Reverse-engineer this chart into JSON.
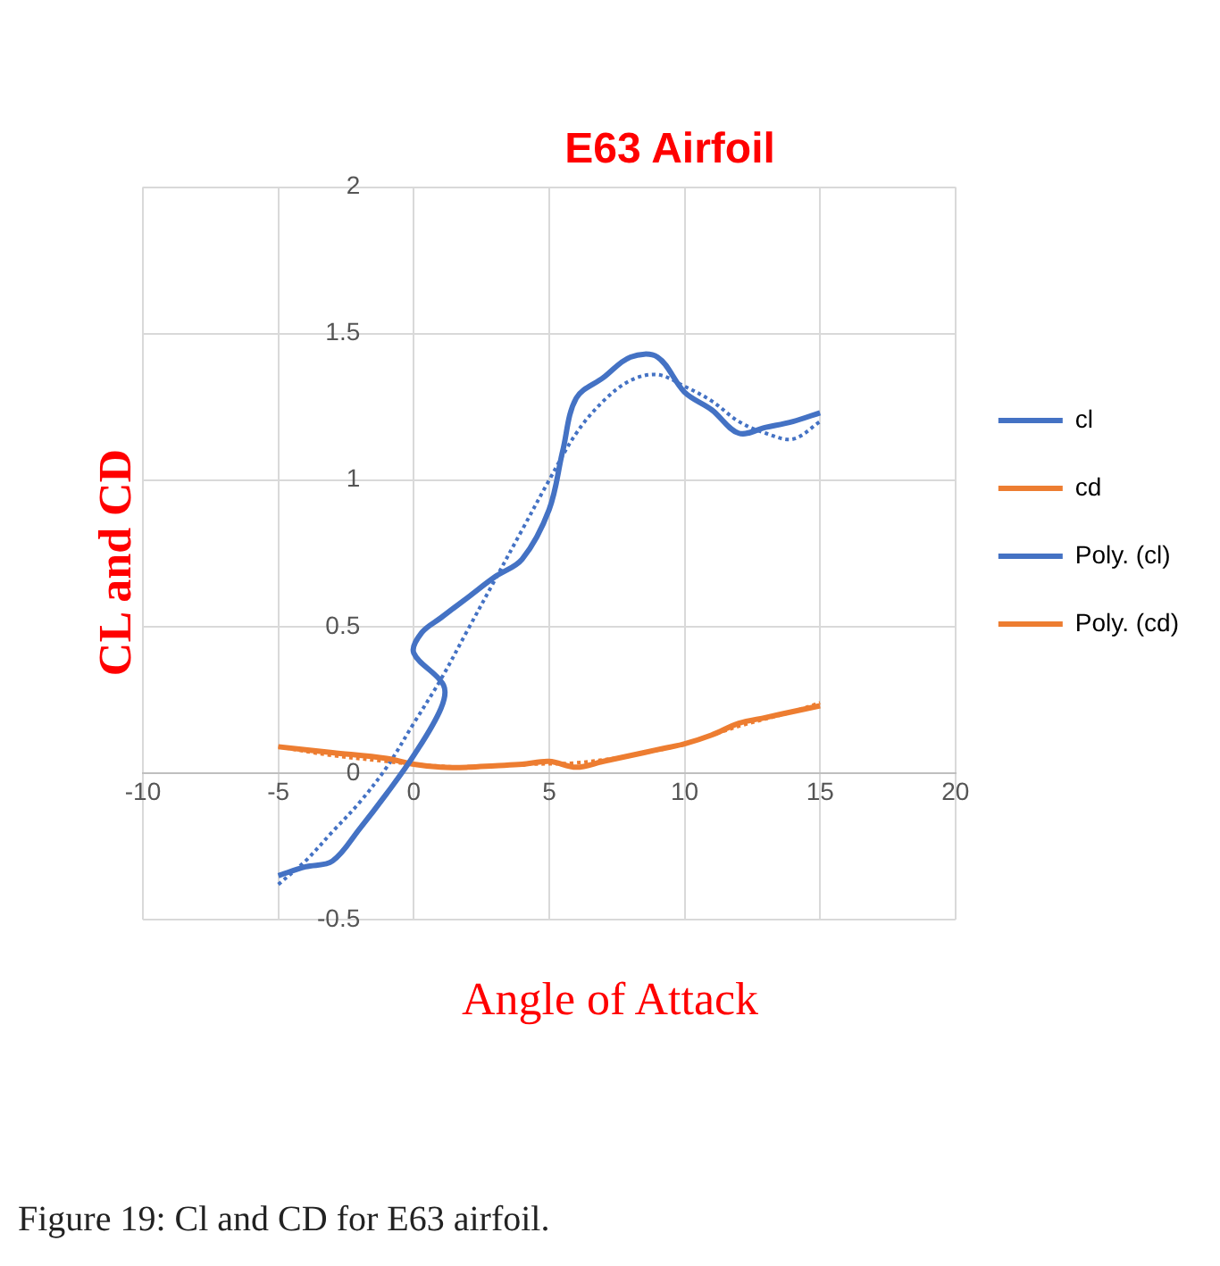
{
  "chart_data": {
    "type": "line",
    "title": "E63 Airfoil",
    "xlabel": "Angle of Attack",
    "ylabel": "CL and CD",
    "xlim": [
      -10,
      20
    ],
    "xticks": [
      -10,
      -5,
      0,
      5,
      10,
      15,
      20
    ],
    "ylim": [
      -0.5,
      2
    ],
    "yticks": [
      -0.5,
      0,
      0.5,
      1,
      1.5,
      2
    ],
    "grid": true,
    "legend": "right",
    "marker": "none",
    "series": [
      {
        "name": "cl",
        "color": "#4472c4",
        "line_style": "solid",
        "x": [
          -5,
          -4,
          -3,
          -2,
          -1,
          0,
          1,
          1.1,
          0,
          0.3,
          1,
          2,
          3,
          4,
          5,
          5.5,
          6,
          7,
          8,
          9,
          10,
          11,
          12,
          13,
          14,
          15
        ],
        "values": [
          -0.35,
          -0.32,
          -0.3,
          -0.19,
          -0.07,
          0.06,
          0.22,
          0.3,
          0.41,
          0.48,
          0.53,
          0.6,
          0.67,
          0.73,
          0.9,
          1.1,
          1.28,
          1.35,
          1.42,
          1.42,
          1.3,
          1.24,
          1.16,
          1.18,
          1.2,
          1.23
        ]
      },
      {
        "name": "cd",
        "color": "#ed7d31",
        "line_style": "solid",
        "x": [
          -5,
          -3,
          -1,
          0,
          1,
          2,
          3,
          4,
          5,
          6,
          7,
          8,
          9,
          10,
          11,
          12,
          13,
          14,
          15
        ],
        "values": [
          0.09,
          0.07,
          0.05,
          0.03,
          0.02,
          0.02,
          0.025,
          0.03,
          0.04,
          0.02,
          0.04,
          0.06,
          0.08,
          0.1,
          0.13,
          0.17,
          0.19,
          0.21,
          0.23
        ]
      },
      {
        "name": "Poly. (cl)",
        "color": "#4472c4",
        "line_style": "dotted",
        "x": [
          -5,
          -4,
          -3,
          -2,
          -1,
          0,
          1,
          2,
          3,
          4,
          5,
          6,
          7,
          8,
          9,
          10,
          11,
          12,
          13,
          14,
          15
        ],
        "values": [
          -0.38,
          -0.3,
          -0.2,
          -0.1,
          0.02,
          0.17,
          0.32,
          0.49,
          0.66,
          0.83,
          1.0,
          1.16,
          1.27,
          1.34,
          1.36,
          1.32,
          1.27,
          1.2,
          1.16,
          1.14,
          1.2
        ]
      },
      {
        "name": "Poly. (cd)",
        "color": "#ed7d31",
        "line_style": "dotted",
        "x": [
          -5,
          -3,
          -1,
          0,
          2,
          4,
          6,
          8,
          10,
          12,
          14,
          15
        ],
        "values": [
          0.09,
          0.06,
          0.04,
          0.03,
          0.02,
          0.03,
          0.035,
          0.06,
          0.1,
          0.16,
          0.21,
          0.24
        ]
      }
    ],
    "annotations": [
      "Figure 19: Cl and CD for E63 airfoil."
    ]
  }
}
